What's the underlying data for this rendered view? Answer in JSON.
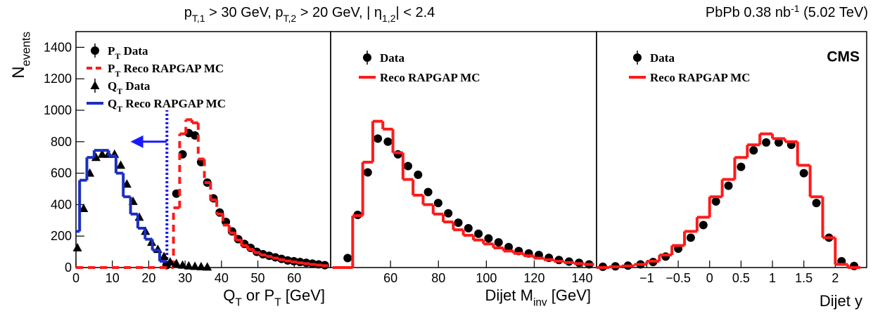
{
  "title_parts": [
    "p",
    "T,1",
    " > 30 GeV, p",
    "T,2",
    " > 20 GeV, | η",
    "1,2",
    "| < 2.4"
  ],
  "lumi_parts": [
    "PbPb 0.38 nb",
    "-1",
    " (5.02 TeV)"
  ],
  "experiment": "CMS",
  "ylabel_parts": [
    "N",
    "events"
  ],
  "chart_data": [
    {
      "type": "histogram",
      "xlabel_parts": [
        "Q",
        "T",
        " or P",
        "T",
        " [GeV]"
      ],
      "xlim": [
        0,
        70
      ],
      "xticks": [
        0,
        10,
        20,
        30,
        40,
        50,
        60
      ],
      "ylim": [
        0,
        1500
      ],
      "yticks": [
        0,
        200,
        400,
        600,
        800,
        1000,
        1200,
        1400
      ],
      "cut_line": {
        "x": 25,
        "y_top": 1000,
        "arrow_to": 15,
        "arrow_y": 800,
        "color": "#1a1aff"
      },
      "series": [
        {
          "name_parts": [
            "P",
            "T",
            " Data"
          ],
          "kind": "points",
          "marker": "circle",
          "color": "#000000",
          "x": [
            24.9,
            27.6,
            29.3,
            31,
            32.7,
            34.4,
            36.1,
            37.8,
            39.5,
            41.2,
            42.9,
            44.6,
            46.3,
            48,
            49.7,
            51.4,
            53.1,
            54.8,
            56.5,
            58.2,
            59.9,
            61.6,
            63.3,
            65,
            66.7,
            68.4
          ],
          "values": [
            15,
            470,
            720,
            855,
            840,
            670,
            540,
            440,
            350,
            290,
            230,
            180,
            150,
            125,
            100,
            85,
            75,
            65,
            55,
            45,
            40,
            35,
            30,
            25,
            20,
            15
          ]
        },
        {
          "name_parts": [
            "P",
            "T",
            " Reco RAPGAP MC"
          ],
          "kind": "step",
          "style": "dashed",
          "color": "#ff1a1a",
          "bins": [
            0,
            26.8,
            28.5,
            30.2,
            31.9,
            33.6,
            35.3,
            37,
            38.7,
            40.4,
            42.1,
            43.8,
            45.5,
            47.2,
            48.9,
            50.6,
            52.3,
            54,
            55.7,
            57.4,
            59.1,
            60.8,
            62.5,
            64.2,
            65.9,
            67.6,
            69.3
          ],
          "values": [
            0,
            380,
            850,
            940,
            920,
            690,
            540,
            430,
            340,
            270,
            220,
            175,
            140,
            115,
            95,
            80,
            70,
            60,
            50,
            42,
            36,
            30,
            25,
            20,
            16,
            12
          ]
        },
        {
          "name_parts": [
            "Q",
            "T",
            " Data"
          ],
          "kind": "points",
          "marker": "triangle",
          "color": "#000000",
          "x": [
            0.4,
            2.1,
            3.8,
            5.5,
            7.2,
            8.9,
            10.6,
            12.3,
            14,
            15.7,
            17.4,
            19.1,
            20.8,
            22.5,
            24.2,
            25.9,
            27.6,
            29.3,
            31,
            32.7,
            34.4,
            36.1
          ],
          "values": [
            125,
            375,
            600,
            700,
            720,
            720,
            720,
            650,
            530,
            420,
            320,
            230,
            160,
            115,
            70,
            35,
            25,
            15,
            10,
            7,
            5,
            3
          ]
        },
        {
          "name_parts": [
            "Q",
            "T",
            " Reco RAPGAP MC"
          ],
          "kind": "step",
          "style": "solid",
          "color": "#1a2fbf",
          "bins": [
            0,
            1,
            3,
            5,
            7,
            9,
            11,
            13,
            15,
            17,
            19,
            21,
            23,
            25
          ],
          "values": [
            230,
            555,
            700,
            745,
            745,
            710,
            600,
            450,
            340,
            250,
            180,
            110,
            40
          ]
        }
      ]
    },
    {
      "type": "histogram",
      "xlabel_parts": [
        "Dijet M",
        "inv",
        " [GeV]"
      ],
      "xlim": [
        35,
        146
      ],
      "xticks": [
        60,
        80,
        100,
        120,
        140
      ],
      "ylim": [
        0,
        1500
      ],
      "series": [
        {
          "name_parts": [
            "Data"
          ],
          "kind": "points",
          "marker": "circle",
          "color": "#000000",
          "x": [
            42.1,
            46.3,
            50.5,
            54.7,
            58.9,
            63.1,
            67.3,
            71.5,
            75.7,
            79.9,
            84.1,
            88.3,
            92.5,
            96.7,
            100.9,
            105.1,
            109.3,
            113.5,
            117.7,
            121.9,
            126.1,
            130.3,
            134.5,
            138.7,
            142.9
          ],
          "values": [
            60,
            335,
            605,
            820,
            800,
            720,
            645,
            590,
            480,
            410,
            345,
            285,
            250,
            215,
            185,
            160,
            130,
            105,
            90,
            80,
            62,
            48,
            38,
            30,
            20
          ]
        },
        {
          "name_parts": [
            "Reco RAPGAP MC"
          ],
          "kind": "step",
          "style": "solid",
          "color": "#ff1a1a",
          "bins": [
            35.8,
            40,
            44.2,
            48.4,
            52.6,
            56.8,
            61,
            65.2,
            69.4,
            73.6,
            77.8,
            82,
            86.2,
            90.4,
            94.6,
            98.8,
            103,
            107.2,
            111.4,
            115.6,
            119.8,
            124,
            128.2,
            132.4,
            136.6,
            140.8,
            145
          ],
          "values": [
            0,
            0,
            330,
            670,
            930,
            880,
            730,
            560,
            460,
            400,
            340,
            290,
            240,
            205,
            175,
            150,
            125,
            105,
            90,
            75,
            60,
            50,
            40,
            32,
            25,
            20
          ]
        }
      ]
    },
    {
      "type": "histogram",
      "xlabel_parts": [
        "Dijet y"
      ],
      "xlim": [
        -1.8,
        2.5
      ],
      "xticks": [
        {
          "value": -1,
          "label": "−1"
        },
        {
          "value": -0.5,
          "label": "−0.5"
        },
        0,
        0.5,
        1,
        1.5,
        2
      ],
      "ylim": [
        0,
        1500
      ],
      "series": [
        {
          "name_parts": [
            "Data"
          ],
          "kind": "points",
          "marker": "circle",
          "color": "#000000",
          "x": [
            -1.7,
            -1.5,
            -1.3,
            -1.1,
            -0.9,
            -0.7,
            -0.5,
            -0.3,
            -0.1,
            0.1,
            0.3,
            0.5,
            0.7,
            0.9,
            1.1,
            1.3,
            1.5,
            1.7,
            1.9,
            2.1,
            2.3
          ],
          "values": [
            5,
            8,
            12,
            20,
            35,
            70,
            120,
            190,
            270,
            420,
            520,
            640,
            745,
            795,
            795,
            780,
            600,
            410,
            190,
            40,
            10
          ]
        },
        {
          "name_parts": [
            "Reco RAPGAP MC"
          ],
          "kind": "step",
          "style": "solid",
          "color": "#ff1a1a",
          "bins": [
            -1.8,
            -1.6,
            -1.4,
            -1.2,
            -1,
            -0.8,
            -0.6,
            -0.4,
            -0.2,
            0,
            0.2,
            0.4,
            0.6,
            0.8,
            1,
            1.2,
            1.4,
            1.6,
            1.8,
            2,
            2.2,
            2.4
          ],
          "values": [
            0,
            5,
            10,
            20,
            40,
            80,
            140,
            230,
            320,
            450,
            560,
            700,
            780,
            850,
            820,
            800,
            650,
            450,
            190,
            20,
            0
          ]
        }
      ]
    }
  ]
}
